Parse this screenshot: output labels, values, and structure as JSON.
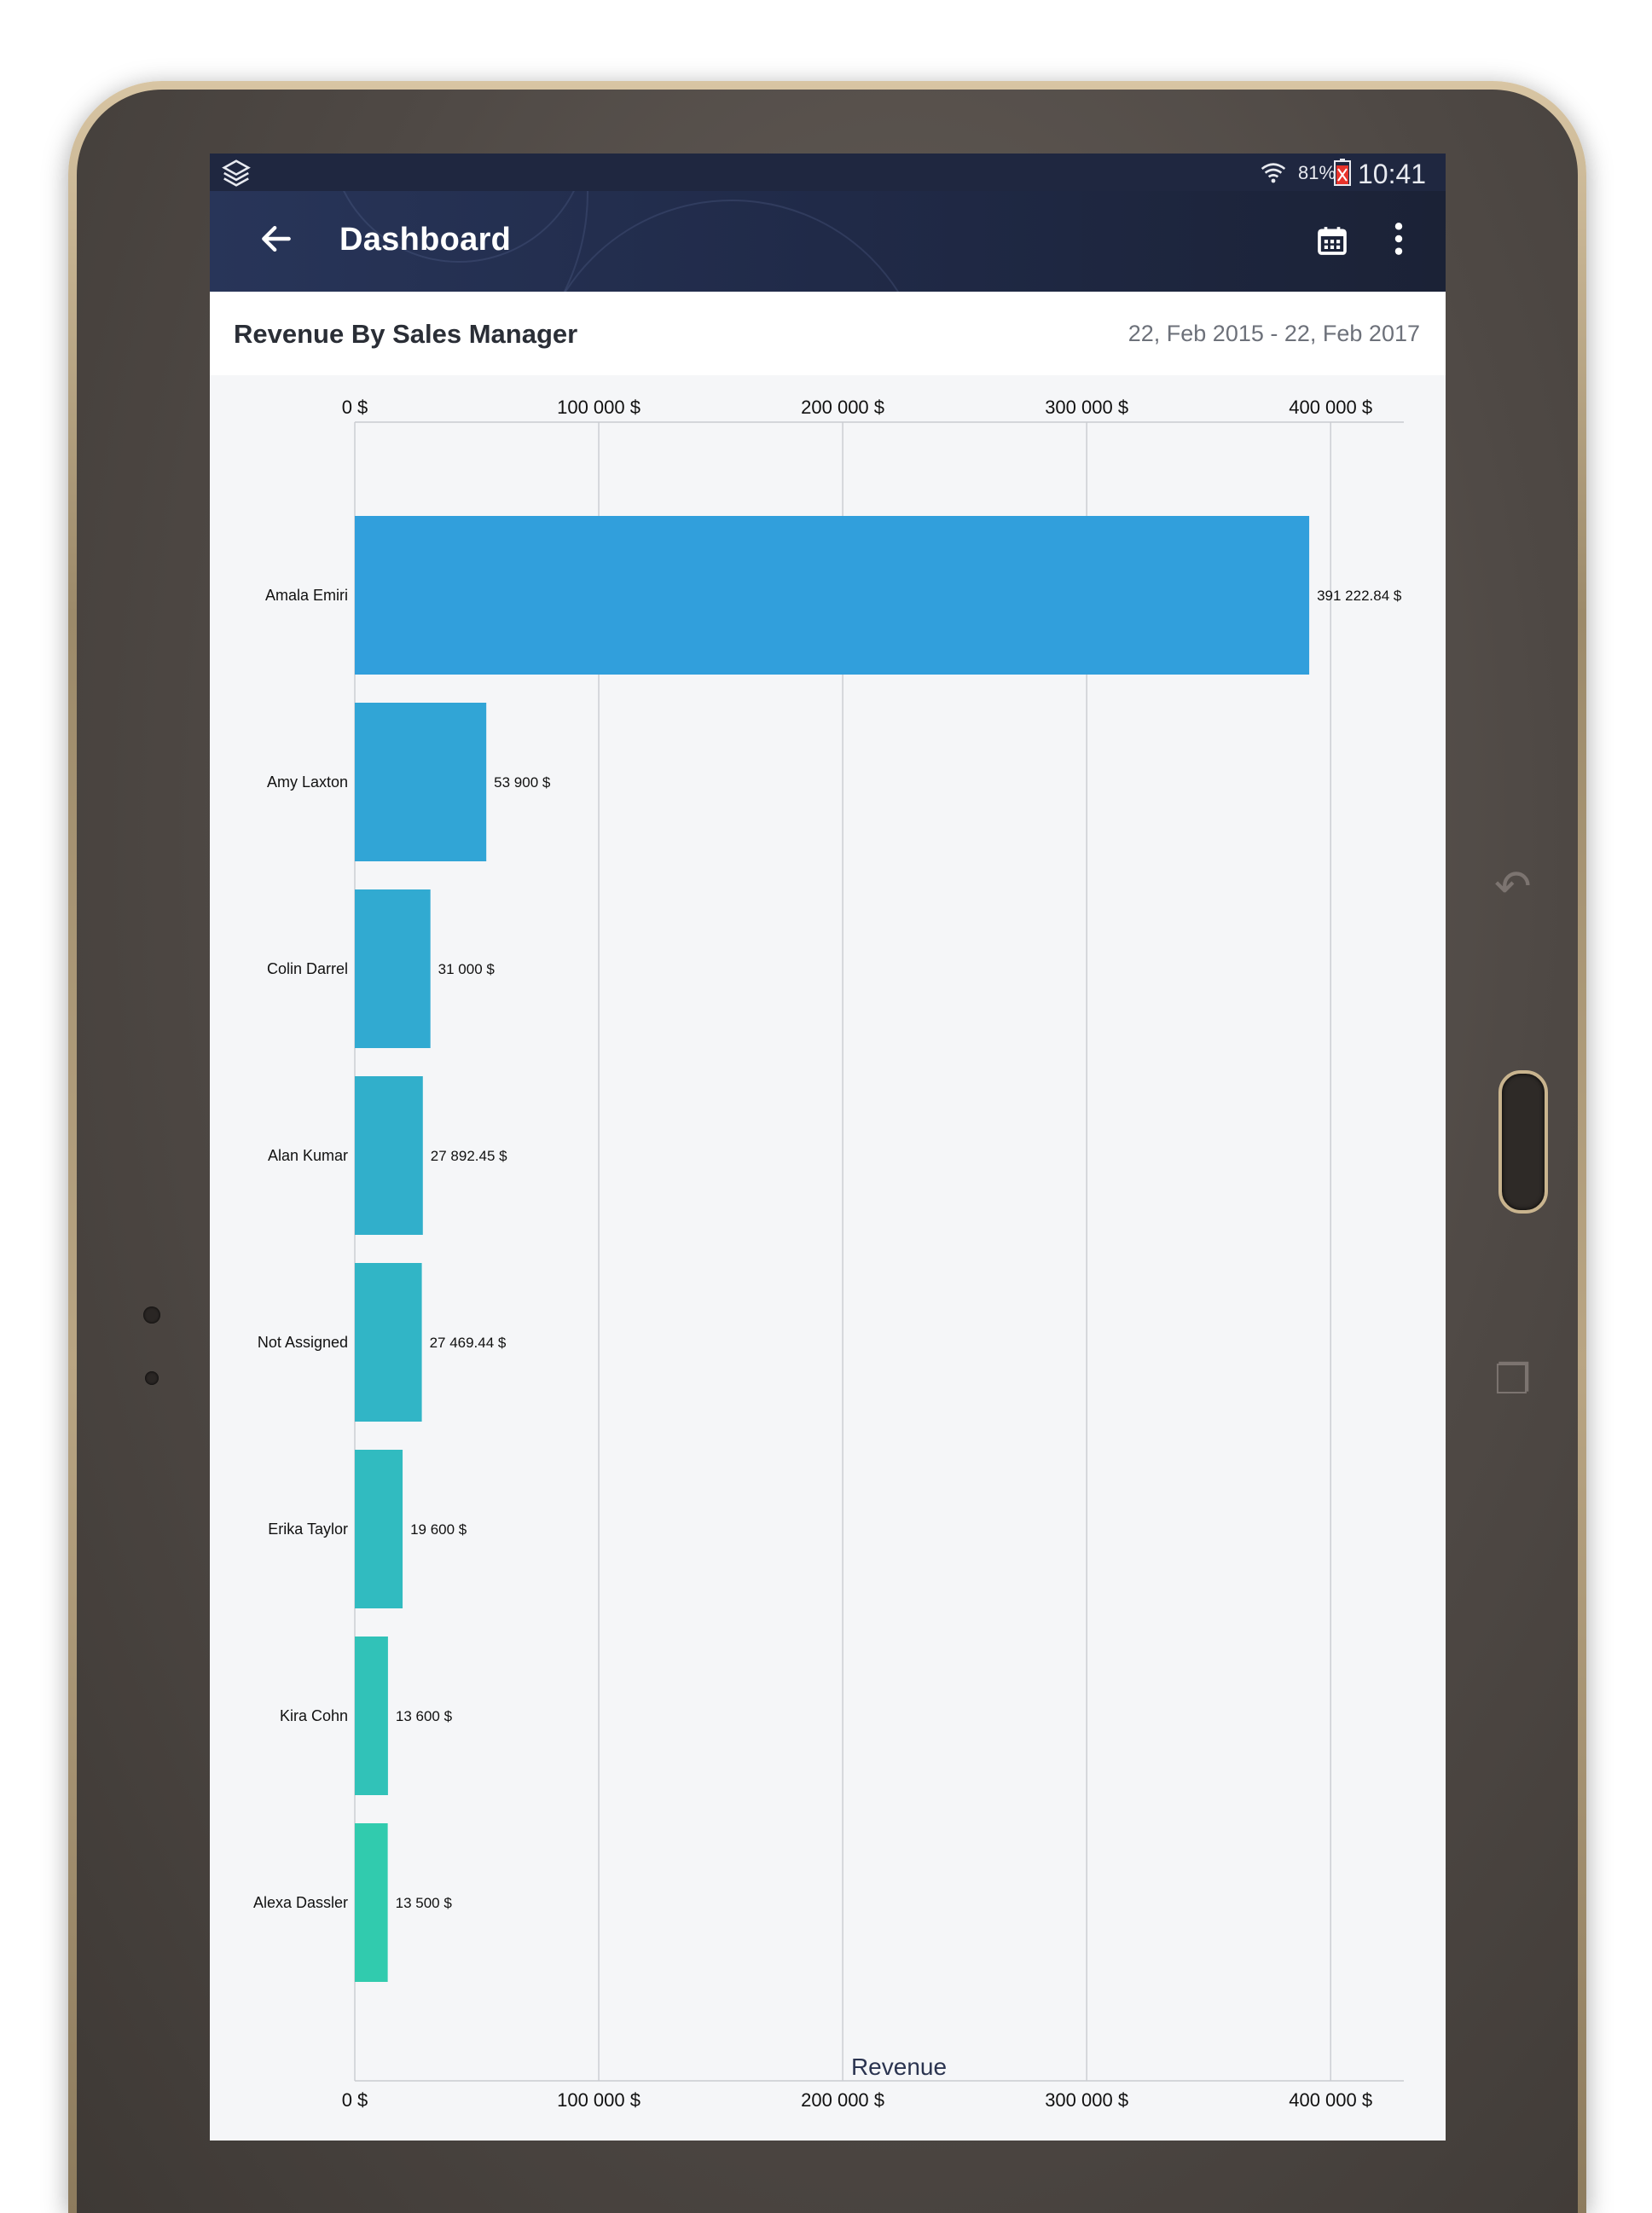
{
  "status_bar": {
    "battery_percent": "81%",
    "time": "10:41"
  },
  "app_bar": {
    "title": "Dashboard"
  },
  "card": {
    "title": "Revenue By Sales Manager",
    "date_range": "22, Feb 2015 - 22, Feb 2017"
  },
  "chart_data": {
    "type": "bar",
    "orientation": "horizontal",
    "xlabel": "Revenue",
    "xlim": [
      0,
      430000
    ],
    "ticks": [
      0,
      100000,
      200000,
      300000,
      400000
    ],
    "tick_labels": [
      "0 $",
      "100 000 $",
      "200 000 $",
      "300 000 $",
      "400 000 $"
    ],
    "grid": true,
    "categories": [
      "Amala Emiri",
      "Amy Laxton",
      "Colin Darrel",
      "Alan Kumar",
      "Not Assigned",
      "Erika Taylor",
      "Kira Cohn",
      "Alexa Dassler"
    ],
    "values": [
      391222.84,
      53900,
      31000,
      27892.45,
      27469.44,
      19600,
      13600,
      13500
    ],
    "value_labels": [
      "391 222.84 $",
      "53 900 $",
      "31 000 $",
      "27 892.45 $",
      "27 469.44 $",
      "19 600 $",
      "13 600 $",
      "13 500 $"
    ],
    "bar_colors": [
      "#319fdc",
      "#31a5d6",
      "#31aad1",
      "#31afcb",
      "#31b5c6",
      "#31bbc0",
      "#31c2b8",
      "#31cbae"
    ]
  }
}
